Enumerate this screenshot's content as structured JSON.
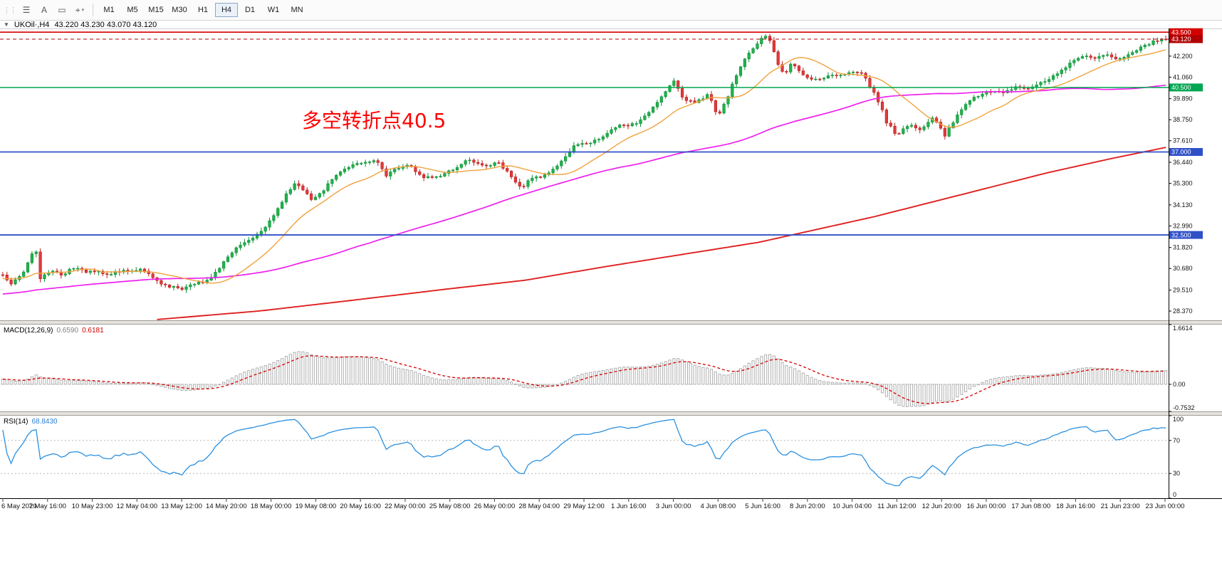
{
  "header": {
    "symbol_period": "UKOil·,H4",
    "ohlc_text": "43.220 43.230 43.070 43.120"
  },
  "toolbar": {
    "tools": [
      {
        "name": "line-studies-tool",
        "glyph": "☰"
      },
      {
        "name": "text-label-tool",
        "glyph": "A"
      },
      {
        "name": "shapes-tool",
        "glyph": "▭"
      },
      {
        "name": "cursor-tool",
        "glyph": "⌖",
        "caret": true
      }
    ],
    "timeframes": [
      {
        "label": "M1"
      },
      {
        "label": "M5"
      },
      {
        "label": "M15"
      },
      {
        "label": "M30"
      },
      {
        "label": "H1"
      },
      {
        "label": "H4",
        "active": true
      },
      {
        "label": "D1"
      },
      {
        "label": "W1"
      },
      {
        "label": "MN"
      }
    ]
  },
  "main_chart": {
    "annotation": "多空转折点40.5"
  },
  "macd_panel": {
    "name": "MACD(12,26,9)",
    "value_main": "0.6590",
    "value_signal": "0.6181"
  },
  "rsi_panel": {
    "name": "RSI(14)",
    "value": "68.8430"
  },
  "chart_data": {
    "type": "candlestick+indicators",
    "symbol": "UKOil",
    "period": "H4",
    "ohlc": {
      "open": 43.22,
      "high": 43.23,
      "low": 43.07,
      "close": 43.12
    },
    "candles_count": 280,
    "main_price_range": [
      27.87,
      43.7
    ],
    "ma_periods": {
      "fast": 16,
      "mid": 80
    },
    "price_axis_labels": [
      "42.200",
      "41.060",
      "39.890",
      "38.750",
      "37.610",
      "36.440",
      "35.300",
      "34.130",
      "32.990",
      "31.820",
      "30.680",
      "29.510",
      "28.370"
    ],
    "hlines": [
      {
        "price": 43.5,
        "label": "43.500",
        "color": "#d40000",
        "width": 1.6
      },
      {
        "price": 43.12,
        "label": "43.120",
        "color": "#b00000",
        "width": 1,
        "dash": "5 4"
      },
      {
        "price": 40.5,
        "label": "40.500",
        "color": "#00a651",
        "width": 1.6
      },
      {
        "price": 37.0,
        "label": "37.000",
        "color": "#3050c8",
        "width": 1.8
      },
      {
        "price": 32.5,
        "label": "32.500",
        "color": "#3050c8",
        "width": 1.8
      }
    ],
    "time_axis_labels": [
      "6 May 2020",
      "7 May 16:00",
      "10 May 23:00",
      "12 May 04:00",
      "13 May 12:00",
      "14 May 20:00",
      "18 May 00:00",
      "19 May 08:00",
      "20 May 16:00",
      "22 May 00:00",
      "25 May 08:00",
      "26 May 00:00",
      "28 May 04:00",
      "29 May 12:00",
      "1 Jun 16:00",
      "3 Jun 00:00",
      "4 Jun 08:00",
      "5 Jun 16:00",
      "8 Jun 20:00",
      "10 Jun 04:00",
      "11 Jun 12:00",
      "12 Jun 20:00",
      "16 Jun 00:00",
      "17 Jun 08:00",
      "18 Jun 16:00",
      "21 Jun 23:00",
      "23 Jun 00:00"
    ],
    "macd": {
      "range": [
        -0.7532,
        1.6614
      ],
      "axis": [
        {
          "v": 1.6614,
          "t": "1.6614"
        },
        {
          "v": 0,
          "t": "0.00"
        },
        {
          "v": -0.7532,
          "t": "-0.7532"
        }
      ],
      "last_main": 0.659,
      "last_signal": 0.6181
    },
    "rsi": {
      "range": [
        0,
        100
      ],
      "levels": [
        70,
        30
      ],
      "axis": [
        {
          "v": 100,
          "t": "100"
        },
        {
          "v": 70,
          "t": "70"
        },
        {
          "v": 30,
          "t": "30"
        },
        {
          "v": 0,
          "t": "0"
        }
      ],
      "last_value": 68.843
    },
    "price_keyframes": [
      [
        0,
        30.3
      ],
      [
        0.006,
        29.85
      ],
      [
        0.012,
        30.1
      ],
      [
        0.018,
        30.45
      ],
      [
        0.024,
        31.4
      ],
      [
        0.028,
        31.9
      ],
      [
        0.032,
        30.15
      ],
      [
        0.038,
        30.45
      ],
      [
        0.045,
        30.6
      ],
      [
        0.052,
        30.3
      ],
      [
        0.058,
        30.7
      ],
      [
        0.065,
        30.75
      ],
      [
        0.071,
        30.4
      ],
      [
        0.078,
        30.55
      ],
      [
        0.084,
        30.5
      ],
      [
        0.09,
        30.35
      ],
      [
        0.097,
        30.45
      ],
      [
        0.105,
        30.6
      ],
      [
        0.11,
        30.55
      ],
      [
        0.118,
        30.65
      ],
      [
        0.123,
        30.45
      ],
      [
        0.13,
        30.1
      ],
      [
        0.136,
        29.9
      ],
      [
        0.143,
        29.65
      ],
      [
        0.148,
        29.75
      ],
      [
        0.155,
        29.55
      ],
      [
        0.161,
        29.8
      ],
      [
        0.168,
        29.9
      ],
      [
        0.174,
        30
      ],
      [
        0.181,
        30.35
      ],
      [
        0.187,
        30.8
      ],
      [
        0.194,
        31.3
      ],
      [
        0.2,
        31.8
      ],
      [
        0.207,
        32.05
      ],
      [
        0.213,
        32.3
      ],
      [
        0.22,
        32.6
      ],
      [
        0.226,
        33
      ],
      [
        0.233,
        33.6
      ],
      [
        0.239,
        34.2
      ],
      [
        0.246,
        34.9
      ],
      [
        0.252,
        35.3
      ],
      [
        0.258,
        35
      ],
      [
        0.265,
        34.4
      ],
      [
        0.271,
        34.6
      ],
      [
        0.278,
        35.1
      ],
      [
        0.284,
        35.6
      ],
      [
        0.291,
        35.95
      ],
      [
        0.297,
        36.2
      ],
      [
        0.304,
        36.35
      ],
      [
        0.31,
        36.4
      ],
      [
        0.317,
        36.5
      ],
      [
        0.323,
        36.45
      ],
      [
        0.329,
        35.7
      ],
      [
        0.336,
        36.05
      ],
      [
        0.343,
        36.2
      ],
      [
        0.349,
        36.3
      ],
      [
        0.356,
        35.9
      ],
      [
        0.362,
        35.6
      ],
      [
        0.369,
        35.65
      ],
      [
        0.375,
        35.7
      ],
      [
        0.382,
        35.95
      ],
      [
        0.388,
        36.1
      ],
      [
        0.395,
        36.4
      ],
      [
        0.401,
        36.6
      ],
      [
        0.408,
        36.4
      ],
      [
        0.414,
        36.2
      ],
      [
        0.421,
        36.35
      ],
      [
        0.427,
        36.4
      ],
      [
        0.434,
        35.9
      ],
      [
        0.44,
        35.4
      ],
      [
        0.446,
        35
      ],
      [
        0.453,
        35.5
      ],
      [
        0.459,
        35.65
      ],
      [
        0.465,
        35.7
      ],
      [
        0.472,
        36
      ],
      [
        0.478,
        36.3
      ],
      [
        0.485,
        36.85
      ],
      [
        0.491,
        37.3
      ],
      [
        0.498,
        37.4
      ],
      [
        0.504,
        37.5
      ],
      [
        0.511,
        37.7
      ],
      [
        0.517,
        37.9
      ],
      [
        0.524,
        38.2
      ],
      [
        0.53,
        38.4
      ],
      [
        0.537,
        38.45
      ],
      [
        0.543,
        38.5
      ],
      [
        0.55,
        38.8
      ],
      [
        0.556,
        39.2
      ],
      [
        0.563,
        39.7
      ],
      [
        0.569,
        40.2
      ],
      [
        0.575,
        40.7
      ],
      [
        0.578,
        40.85
      ],
      [
        0.582,
        40.3
      ],
      [
        0.585,
        39.9
      ],
      [
        0.591,
        39.75
      ],
      [
        0.594,
        39.7
      ],
      [
        0.601,
        39.9
      ],
      [
        0.607,
        40.1
      ],
      [
        0.611,
        39.5
      ],
      [
        0.614,
        38.9
      ],
      [
        0.618,
        39.3
      ],
      [
        0.622,
        39.8
      ],
      [
        0.627,
        40.6
      ],
      [
        0.632,
        41.3
      ],
      [
        0.637,
        41.9
      ],
      [
        0.641,
        42.3
      ],
      [
        0.646,
        42.7
      ],
      [
        0.65,
        43
      ],
      [
        0.654,
        43.2
      ],
      [
        0.658,
        43.3
      ],
      [
        0.662,
        42.7
      ],
      [
        0.665,
        42
      ],
      [
        0.669,
        41.5
      ],
      [
        0.672,
        41.2
      ],
      [
        0.676,
        41.6
      ],
      [
        0.679,
        41.9
      ],
      [
        0.683,
        41.5
      ],
      [
        0.686,
        41.3
      ],
      [
        0.691,
        41.1
      ],
      [
        0.698,
        40.9
      ],
      [
        0.705,
        41
      ],
      [
        0.711,
        41.1
      ],
      [
        0.718,
        41.15
      ],
      [
        0.724,
        41.2
      ],
      [
        0.731,
        41.3
      ],
      [
        0.737,
        41.4
      ],
      [
        0.742,
        41
      ],
      [
        0.747,
        40.4
      ],
      [
        0.751,
        40
      ],
      [
        0.756,
        39.3
      ],
      [
        0.76,
        38.6
      ],
      [
        0.765,
        38.3
      ],
      [
        0.768,
        37.85
      ],
      [
        0.772,
        38.1
      ],
      [
        0.775,
        38.3
      ],
      [
        0.78,
        38.45
      ],
      [
        0.785,
        38.3
      ],
      [
        0.79,
        38.2
      ],
      [
        0.795,
        38.6
      ],
      [
        0.8,
        38.9
      ],
      [
        0.805,
        38.4
      ],
      [
        0.81,
        37.9
      ],
      [
        0.815,
        38.4
      ],
      [
        0.82,
        38.9
      ],
      [
        0.825,
        39.4
      ],
      [
        0.83,
        39.8
      ],
      [
        0.835,
        39.95
      ],
      [
        0.84,
        40
      ],
      [
        0.845,
        40.2
      ],
      [
        0.85,
        40.3
      ],
      [
        0.855,
        40.25
      ],
      [
        0.86,
        40.2
      ],
      [
        0.865,
        40.35
      ],
      [
        0.87,
        40.5
      ],
      [
        0.875,
        40.45
      ],
      [
        0.88,
        40.4
      ],
      [
        0.885,
        40.55
      ],
      [
        0.89,
        40.7
      ],
      [
        0.895,
        40.85
      ],
      [
        0.9,
        41
      ],
      [
        0.905,
        41.2
      ],
      [
        0.91,
        41.4
      ],
      [
        0.915,
        41.65
      ],
      [
        0.92,
        41.9
      ],
      [
        0.925,
        42.05
      ],
      [
        0.93,
        42.2
      ],
      [
        0.935,
        42.15
      ],
      [
        0.94,
        42.1
      ],
      [
        0.945,
        42.2
      ],
      [
        0.95,
        42.3
      ],
      [
        0.955,
        42.15
      ],
      [
        0.96,
        42
      ],
      [
        0.965,
        42.2
      ],
      [
        0.97,
        42.4
      ],
      [
        0.975,
        42.55
      ],
      [
        0.98,
        42.7
      ],
      [
        0.985,
        42.85
      ],
      [
        0.99,
        43
      ],
      [
        0.995,
        43.1
      ],
      [
        1,
        43.12
      ]
    ],
    "slow_ma_keyframes": [
      [
        0.13,
        27.9
      ],
      [
        0.22,
        28.37
      ],
      [
        0.3,
        28.95
      ],
      [
        0.38,
        29.55
      ],
      [
        0.45,
        30.05
      ],
      [
        0.52,
        30.8
      ],
      [
        0.58,
        31.4
      ],
      [
        0.65,
        32.1
      ],
      [
        0.7,
        32.8
      ],
      [
        0.75,
        33.5
      ],
      [
        0.8,
        34.3
      ],
      [
        0.85,
        35.1
      ],
      [
        0.9,
        35.9
      ],
      [
        0.95,
        36.6
      ],
      [
        1,
        37.25
      ]
    ],
    "colors": {
      "up_fill": "#21b24b",
      "up_stroke": "#0c8f37",
      "down_fill": "#e13b3b",
      "down_stroke": "#b91c1c",
      "ma_fast": "#f0a23c",
      "ma_mid": "#ee22ee",
      "ma_slow": "#e02020",
      "histogram": "#b0b0b0",
      "signal": "#d40000",
      "rsi": "#2a90e0",
      "annotation": "#ff0000",
      "hline_red": "#d40000",
      "hline_green": "#00a651",
      "hline_blue": "#3050c8"
    }
  }
}
